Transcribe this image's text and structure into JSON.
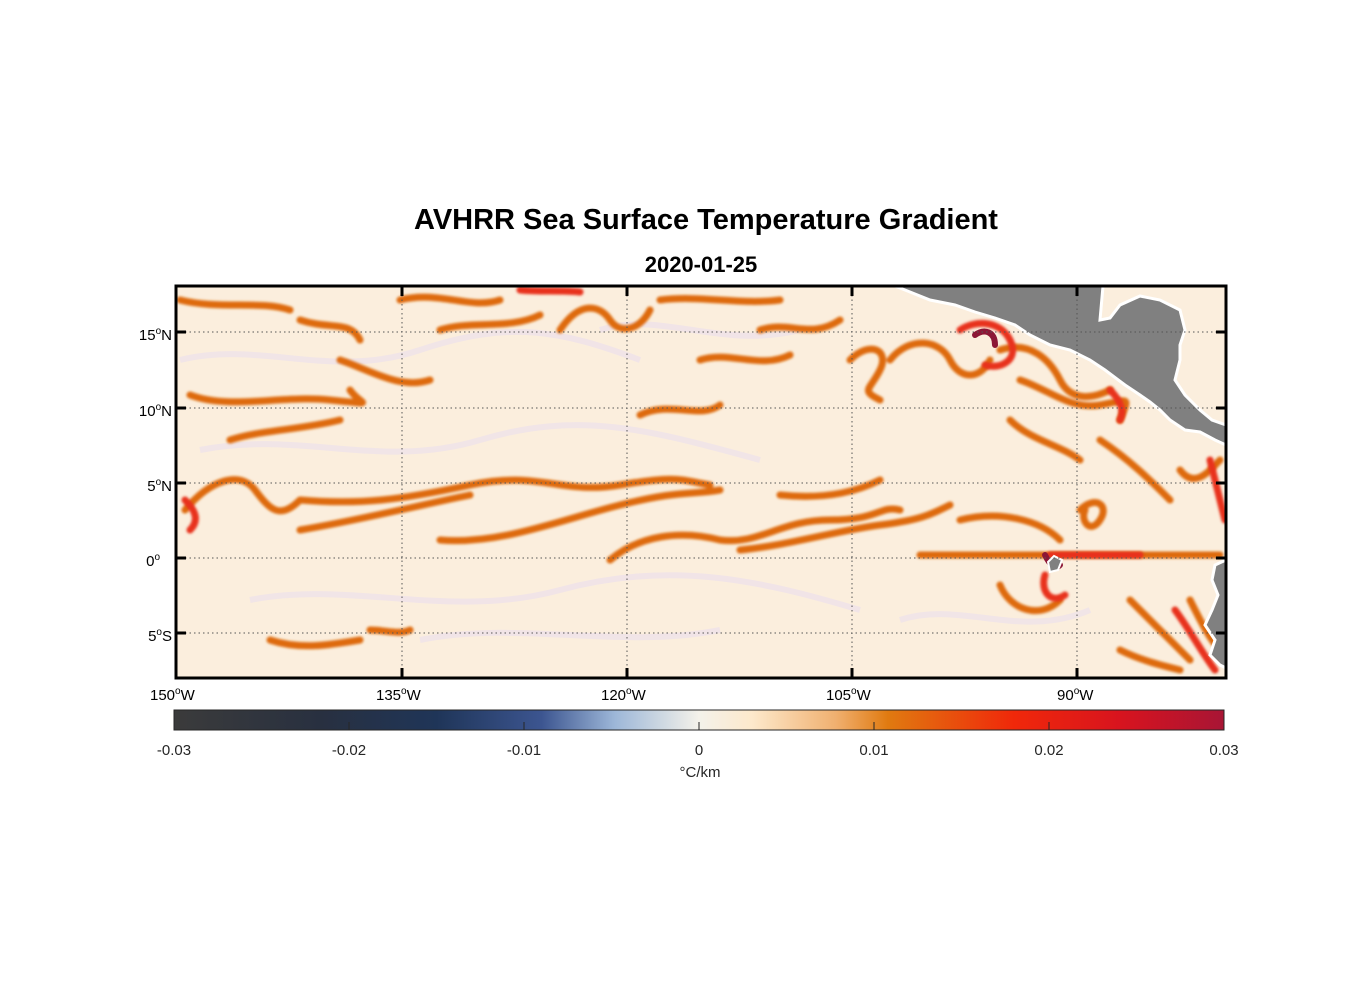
{
  "title": "AVHRR Sea Surface Temperature Gradient",
  "subtitle": "2020-01-25",
  "map": {
    "lon_ticks": [
      "150",
      "135",
      "120",
      "105",
      "90"
    ],
    "lon_suffix": "W",
    "lat_ticks": [
      {
        "value": "15",
        "hemi": "N"
      },
      {
        "value": "10",
        "hemi": "N"
      },
      {
        "value": "5",
        "hemi": "N"
      },
      {
        "value": "0",
        "hemi": ""
      },
      {
        "value": "5",
        "hemi": "S"
      }
    ],
    "degree_symbol": "o",
    "lon_range": [
      -150,
      -80
    ],
    "lat_range": [
      -8,
      18
    ],
    "grid": "dotted",
    "colors": {
      "land": "#808080",
      "ocean_background": "#fbeedd",
      "front_orange": "#de6a10",
      "front_red": "#e21a1a",
      "front_darkred": "#8c1736"
    }
  },
  "colorbar": {
    "ticks": [
      "-0.03",
      "-0.02",
      "-0.01",
      "0",
      "0.01",
      "0.02",
      "0.03"
    ],
    "unit": "°C/km",
    "range": [
      -0.03,
      0.03
    ],
    "colormap": [
      "#3b3b3b",
      "#1f3558",
      "#4d6aa8",
      "#e6eef4",
      "#fdebd0",
      "#e07a10",
      "#f0280a",
      "#a81535"
    ]
  }
}
